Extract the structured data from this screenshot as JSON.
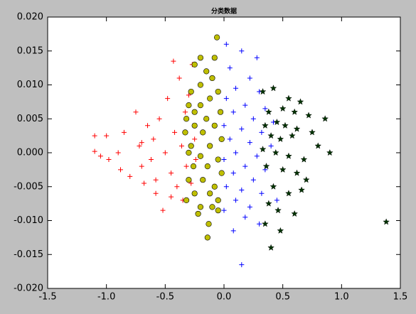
{
  "chart_data": {
    "type": "scatter",
    "title": "分类数据",
    "xlim": [
      -1.5,
      1.5
    ],
    "xticks": [
      {
        "value": -1.5,
        "label": "-1.5"
      },
      {
        "value": -1.0,
        "label": "-1.0"
      },
      {
        "value": -0.5,
        "label": "-0.5"
      },
      {
        "value": 0.0,
        "label": "0.0"
      },
      {
        "value": 0.5,
        "label": "0.5"
      },
      {
        "value": 1.0,
        "label": "1.0"
      },
      {
        "value": 1.5,
        "label": "1.5"
      }
    ],
    "ylim": [
      -0.02,
      0.02
    ],
    "yticks": [
      {
        "value": -0.02,
        "label": "-0.020"
      },
      {
        "value": -0.015,
        "label": "-0.015"
      },
      {
        "value": -0.01,
        "label": "-0.010"
      },
      {
        "value": -0.005,
        "label": "-0.005"
      },
      {
        "value": 0,
        "label": "0.000"
      },
      {
        "value": 0.005,
        "label": "0.005"
      },
      {
        "value": 0.01,
        "label": "0.010"
      },
      {
        "value": 0.015,
        "label": "0.015"
      },
      {
        "value": 0.02,
        "label": "0.020"
      }
    ],
    "grid": false,
    "series": [
      {
        "color": "#ff0000",
        "marker": "plus",
        "x": [
          -1.1,
          -1.1,
          -1.05,
          -1.0,
          -0.98,
          -0.9,
          -0.88,
          -0.85,
          -0.8,
          -0.75,
          -0.72,
          -0.7,
          -0.68,
          -0.65,
          -0.62,
          -0.6,
          -0.58,
          -0.55,
          -0.52,
          -0.5,
          -0.48,
          -0.45,
          -0.43,
          -0.42,
          -0.4,
          -0.38,
          -0.36,
          -0.35,
          -0.33,
          -0.32,
          -0.3,
          -0.28,
          -0.27,
          -0.25,
          -0.24,
          -0.58,
          -0.7,
          -0.45
        ],
        "y": [
          0.0025,
          0.0002,
          -0.0005,
          0.0025,
          -0.001,
          0.0,
          -0.0025,
          0.003,
          -0.0035,
          0.006,
          0.001,
          -0.002,
          -0.0045,
          0.004,
          -0.001,
          0.002,
          -0.006,
          0.005,
          -0.0085,
          0.0,
          0.008,
          -0.003,
          0.0135,
          0.003,
          -0.005,
          0.011,
          0.001,
          -0.007,
          0.006,
          -0.002,
          0.0085,
          -0.0045,
          0.013,
          0.002,
          -0.001,
          -0.004,
          0.0015,
          -0.0065
        ]
      },
      {
        "color": "#0000ff",
        "marker": "plus",
        "x": [
          0.02,
          0.15,
          0.28,
          0.05,
          0.22,
          0.1,
          0.3,
          0.02,
          0.18,
          0.35,
          0.08,
          0.25,
          0.42,
          0.0,
          0.15,
          0.32,
          0.05,
          0.22,
          0.4,
          0.1,
          0.28,
          0.0,
          0.18,
          0.35,
          0.08,
          0.25,
          0.02,
          0.15,
          0.32,
          0.1,
          0.22,
          0.0,
          0.18,
          0.08,
          0.3,
          0.15,
          0.45
        ],
        "y": [
          0.016,
          0.015,
          0.014,
          0.0125,
          0.011,
          0.0095,
          0.009,
          0.008,
          0.007,
          0.0065,
          0.006,
          0.005,
          0.0045,
          0.004,
          0.0035,
          0.003,
          0.002,
          0.0015,
          0.001,
          0.0,
          -0.0005,
          -0.001,
          -0.002,
          -0.0025,
          -0.003,
          -0.004,
          -0.005,
          -0.0055,
          -0.006,
          -0.007,
          -0.008,
          -0.0085,
          -0.0095,
          -0.0115,
          -0.0105,
          -0.0165,
          -0.007
        ]
      },
      {
        "color": "#bfbf00",
        "marker": "circle",
        "x": [
          -0.06,
          -0.2,
          -0.08,
          -0.25,
          -0.15,
          -0.1,
          -0.2,
          -0.28,
          -0.05,
          -0.12,
          -0.3,
          -0.2,
          -0.03,
          -0.32,
          -0.15,
          -0.25,
          -0.08,
          -0.33,
          -0.18,
          -0.02,
          -0.28,
          -0.12,
          -0.3,
          -0.2,
          -0.05,
          -0.26,
          -0.14,
          -0.02,
          -0.3,
          -0.18,
          -0.08,
          -0.25,
          -0.12,
          -0.32,
          -0.05,
          -0.2,
          -0.1,
          -0.22,
          -0.05,
          -0.13,
          -0.14,
          -0.25
        ],
        "y": [
          0.017,
          0.014,
          0.014,
          0.013,
          0.012,
          0.011,
          0.01,
          0.009,
          0.009,
          0.008,
          0.007,
          0.007,
          0.006,
          0.005,
          0.005,
          0.004,
          0.004,
          0.003,
          0.003,
          0.002,
          0.001,
          0.001,
          0.0,
          -0.0005,
          -0.001,
          -0.002,
          -0.002,
          -0.003,
          -0.004,
          -0.004,
          -0.005,
          -0.006,
          -0.006,
          -0.007,
          -0.007,
          -0.008,
          -0.008,
          -0.009,
          -0.0085,
          -0.0105,
          -0.0125,
          0.006
        ]
      },
      {
        "color": "#003300",
        "marker": "star",
        "x": [
          0.33,
          0.42,
          0.55,
          0.65,
          0.38,
          0.5,
          0.6,
          0.72,
          0.86,
          0.35,
          0.45,
          0.52,
          0.62,
          0.75,
          0.4,
          0.48,
          0.58,
          0.8,
          0.33,
          0.44,
          0.55,
          0.68,
          0.36,
          0.5,
          0.62,
          0.7,
          0.42,
          0.55,
          0.66,
          0.38,
          0.46,
          0.6,
          0.35,
          0.48,
          0.4,
          1.38,
          0.9
        ],
        "y": [
          0.009,
          0.0095,
          0.008,
          0.0075,
          0.006,
          0.0065,
          0.006,
          0.0055,
          0.005,
          0.004,
          0.0045,
          0.004,
          0.0035,
          0.003,
          0.0025,
          0.002,
          0.0025,
          0.001,
          0.0005,
          0.0,
          -0.0005,
          -0.001,
          -0.002,
          -0.0025,
          -0.003,
          -0.004,
          -0.005,
          -0.006,
          -0.0055,
          -0.0075,
          -0.0085,
          -0.009,
          -0.0105,
          -0.0115,
          -0.014,
          -0.0102,
          0.0
        ]
      }
    ]
  }
}
